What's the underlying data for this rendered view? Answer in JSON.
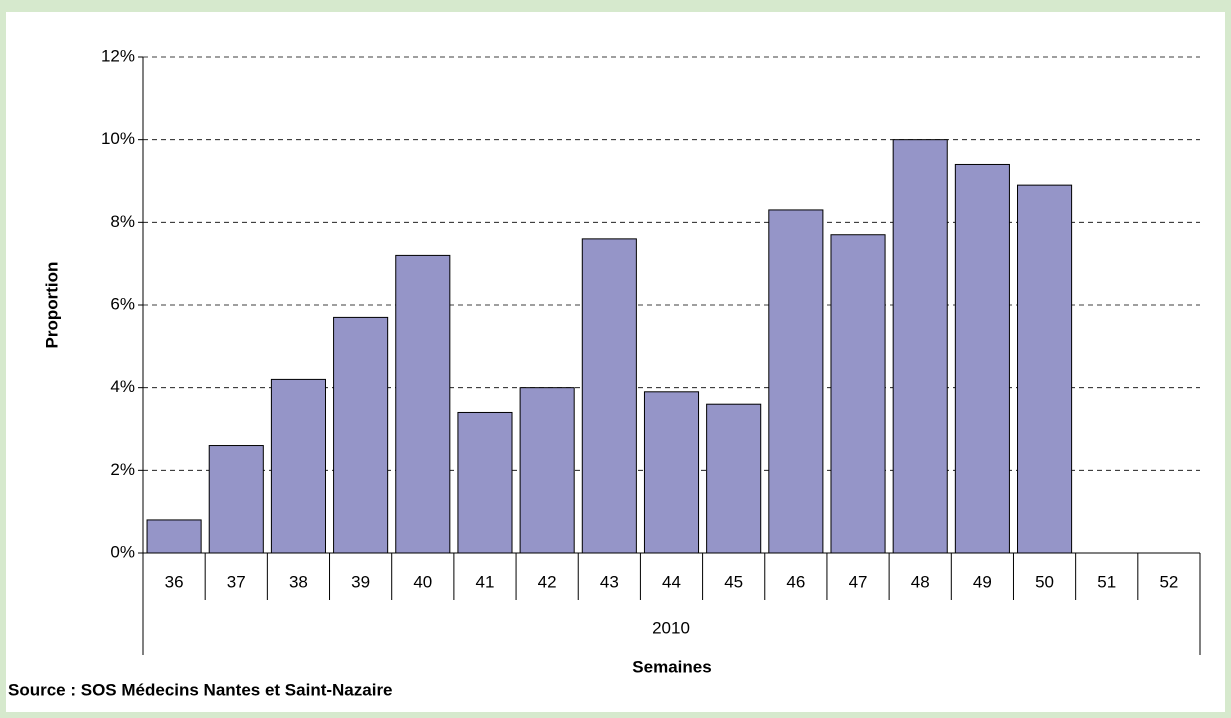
{
  "chart_data": {
    "type": "bar",
    "y_label": "Proportion",
    "x_label": "Semaines",
    "category_group": "2010",
    "source": "Source : SOS Médecins Nantes et Saint-Nazaire",
    "categories": [
      "36",
      "37",
      "38",
      "39",
      "40",
      "41",
      "42",
      "43",
      "44",
      "45",
      "46",
      "47",
      "48",
      "49",
      "50",
      "51",
      "52"
    ],
    "values": [
      0.8,
      2.6,
      4.2,
      5.7,
      7.2,
      3.4,
      4.0,
      7.6,
      3.9,
      3.6,
      8.3,
      7.7,
      10.0,
      9.4,
      8.9,
      null,
      null
    ],
    "color": "#9595c8",
    "ylim": [
      0,
      12
    ],
    "yticks": [
      {
        "value": 0,
        "label": "0%"
      },
      {
        "value": 2,
        "label": "2%"
      },
      {
        "value": 4,
        "label": "4%"
      },
      {
        "value": 6,
        "label": "6%"
      },
      {
        "value": 8,
        "label": "8%"
      },
      {
        "value": 10,
        "label": "10%"
      },
      {
        "value": 12,
        "label": "12%"
      }
    ],
    "grid": true
  }
}
